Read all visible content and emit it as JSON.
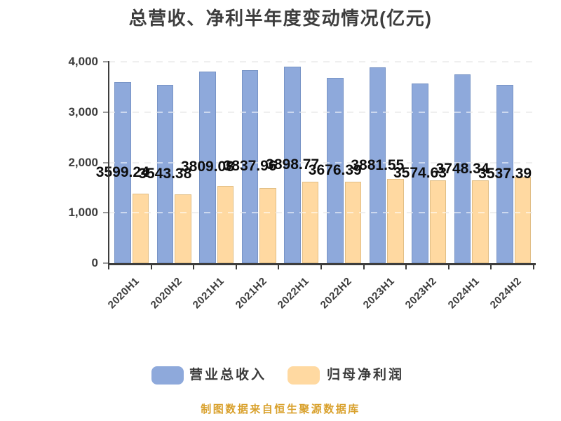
{
  "title": "总营收、净利半年度变动情况(亿元)",
  "footer": "制图数据来自恒生聚源数据库",
  "colors": {
    "revenue_bar": "#8EA9DB",
    "profit_bar": "#FFD9A1",
    "title_text": "#3D3D3D",
    "axis_text": "#3D3D3D",
    "value_label_text": "#0E0E0E",
    "gridline": "#DCDCDC",
    "footer_text": "#D9A12D"
  },
  "legend": {
    "items": [
      {
        "label": "营业总收入",
        "color": "#8EA9DB"
      },
      {
        "label": "归母净利润",
        "color": "#FFD9A1"
      }
    ],
    "position": "bottom"
  },
  "chart_data": {
    "type": "bar",
    "title": "总营收、净利半年度变动情况(亿元)",
    "categories": [
      "2020H1",
      "2020H2",
      "2021H1",
      "2021H2",
      "2022H1",
      "2022H2",
      "2023H1",
      "2023H2",
      "2024H1",
      "2024H2"
    ],
    "series": [
      {
        "name": "营业总收入",
        "color": "#8EA9DB",
        "values": [
          3599.24,
          3543.38,
          3809.08,
          3837.96,
          3898.77,
          3676.39,
          3881.55,
          3574.63,
          3748.34,
          3537.39
        ],
        "value_labels": [
          "3599.24",
          "3543.38",
          "3809.08",
          "3837.96",
          "3898.77",
          "3676.39",
          "3881.55",
          "3574.63",
          "3748.34",
          "3537.39"
        ],
        "labels_visible": true
      },
      {
        "name": "归母净利润",
        "color": "#FFD9A1",
        "values": [
          1376,
          1360,
          1533,
          1492,
          1616,
          1622,
          1673,
          1651,
          1643,
          1713
        ],
        "labels_visible": false,
        "values_note": "bars unlabeled; values estimated from gridlines"
      }
    ],
    "xlabel": "",
    "ylabel": "",
    "ylim": [
      0,
      4000
    ],
    "yticks": [
      "0",
      "1,000",
      "2,000",
      "3,000",
      "4,000"
    ],
    "grid": "horizontal dashed",
    "legend_position": "bottom"
  }
}
